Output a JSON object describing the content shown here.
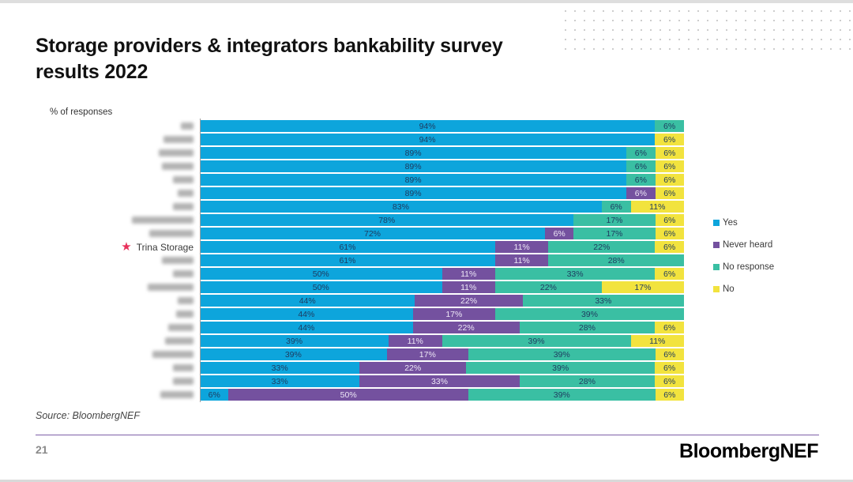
{
  "slide": {
    "title": "Storage providers & integrators bankability survey results 2022",
    "axis_label": "% of responses",
    "source": "Source: BloombergNEF",
    "page_number": "21",
    "logo_text": "BloombergNEF"
  },
  "colors": {
    "star": "#e8315b",
    "value_text": "#1e3a5f",
    "value_text_on_never_heard": "#ede7f6",
    "divider": "#7d60a8"
  },
  "chart_data": {
    "type": "bar",
    "orientation": "horizontal",
    "stacked": true,
    "units": "% of responses",
    "x_range": [
      0,
      100
    ],
    "grid": false,
    "legend_position": "right",
    "title": "Storage providers & integrators bankability survey results 2022",
    "note": "All row labels except 'Trina Storage' are blurred/redacted in the source image; 'Trina Storage' is marked with a red star.",
    "legend": [
      {
        "name": "Yes",
        "color": "#0da5dc"
      },
      {
        "name": "Never heard",
        "color": "#74519f"
      },
      {
        "name": "No response",
        "color": "#3abfa3"
      },
      {
        "name": "No",
        "color": "#f2e33e"
      }
    ],
    "rows": [
      {
        "label": "",
        "redacted": true,
        "label_width": 16,
        "values": [
          94,
          0,
          6,
          0
        ]
      },
      {
        "label": "",
        "redacted": true,
        "label_width": 38,
        "values": [
          94,
          0,
          0,
          6
        ]
      },
      {
        "label": "",
        "redacted": true,
        "label_width": 44,
        "values": [
          89,
          0,
          6,
          6
        ]
      },
      {
        "label": "",
        "redacted": true,
        "label_width": 40,
        "values": [
          89,
          0,
          6,
          6
        ]
      },
      {
        "label": "",
        "redacted": true,
        "label_width": 26,
        "values": [
          89,
          0,
          6,
          6
        ]
      },
      {
        "label": "",
        "redacted": true,
        "label_width": 20,
        "values": [
          89,
          6,
          0,
          6
        ]
      },
      {
        "label": "",
        "redacted": true,
        "label_width": 26,
        "values": [
          83,
          0,
          6,
          11
        ]
      },
      {
        "label": "",
        "redacted": true,
        "label_width": 78,
        "values": [
          78,
          0,
          17,
          6
        ]
      },
      {
        "label": "",
        "redacted": true,
        "label_width": 56,
        "values": [
          72,
          6,
          17,
          6
        ]
      },
      {
        "label": "Trina Storage",
        "redacted": false,
        "highlight": true,
        "values": [
          61,
          11,
          22,
          6
        ]
      },
      {
        "label": "",
        "redacted": true,
        "label_width": 40,
        "values": [
          61,
          11,
          28,
          0
        ]
      },
      {
        "label": "",
        "redacted": true,
        "label_width": 26,
        "values": [
          50,
          11,
          33,
          6
        ]
      },
      {
        "label": "",
        "redacted": true,
        "label_width": 58,
        "values": [
          50,
          11,
          22,
          17
        ]
      },
      {
        "label": "",
        "redacted": true,
        "label_width": 20,
        "values": [
          44,
          22,
          33,
          0
        ]
      },
      {
        "label": "",
        "redacted": true,
        "label_width": 22,
        "values": [
          44,
          17,
          39,
          0
        ]
      },
      {
        "label": "",
        "redacted": true,
        "label_width": 32,
        "values": [
          44,
          22,
          28,
          6
        ]
      },
      {
        "label": "",
        "redacted": true,
        "label_width": 36,
        "values": [
          39,
          11,
          39,
          11
        ]
      },
      {
        "label": "",
        "redacted": true,
        "label_width": 52,
        "values": [
          39,
          17,
          39,
          6
        ]
      },
      {
        "label": "",
        "redacted": true,
        "label_width": 26,
        "values": [
          33,
          22,
          39,
          6
        ]
      },
      {
        "label": "",
        "redacted": true,
        "label_width": 26,
        "values": [
          33,
          33,
          28,
          6
        ]
      },
      {
        "label": "",
        "redacted": true,
        "label_width": 42,
        "values": [
          6,
          50,
          39,
          6
        ]
      }
    ]
  }
}
